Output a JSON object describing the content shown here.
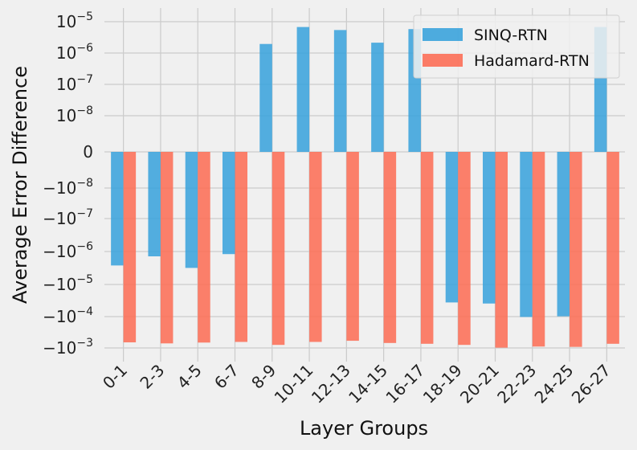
{
  "chart_data": {
    "type": "bar",
    "title": "",
    "xlabel": "Layer Groups",
    "ylabel": "Average Error Difference",
    "yscale": "symlog",
    "categories": [
      "0-1",
      "2-3",
      "4-5",
      "6-7",
      "8-9",
      "10-11",
      "12-13",
      "14-15",
      "16-17",
      "18-19",
      "20-21",
      "22-23",
      "24-25",
      "26-27"
    ],
    "series": [
      {
        "name": "SINQ-RTN",
        "color": "#3ba3dc",
        "values": [
          -2.6e-06,
          -1.35e-06,
          -3.1e-06,
          -1.15e-06,
          2e-06,
          7e-06,
          5.6e-06,
          2.2e-06,
          6e-06,
          -3.7e-05,
          -4e-05,
          -0.000105,
          -0.0001,
          7e-06
        ]
      },
      {
        "name": "Hadamard-RTN",
        "color": "#fc6e57",
        "values": [
          -0.00065,
          -0.0007,
          -0.00066,
          -0.00063,
          -0.00078,
          -0.00063,
          -0.00058,
          -0.00068,
          -0.00072,
          -0.00078,
          -0.00095,
          -0.00088,
          -0.0009,
          -0.00072
        ]
      }
    ],
    "yticks": [
      {
        "base": "10",
        "exp": "−5"
      },
      {
        "base": "10",
        "exp": "−6"
      },
      {
        "base": "10",
        "exp": "−7"
      },
      {
        "base": "10",
        "exp": "−8"
      },
      {
        "base": "0",
        "exp": ""
      },
      {
        "base": "−10",
        "exp": "−8"
      },
      {
        "base": "−10",
        "exp": "−7"
      },
      {
        "base": "−10",
        "exp": "−6"
      },
      {
        "base": "−10",
        "exp": "−5"
      },
      {
        "base": "−10",
        "exp": "−4"
      },
      {
        "base": "−10",
        "exp": "−3"
      }
    ],
    "legend": {
      "position": "top-right",
      "entries": [
        "SINQ-RTN",
        "Hadamard-RTN"
      ]
    },
    "grid": true
  }
}
